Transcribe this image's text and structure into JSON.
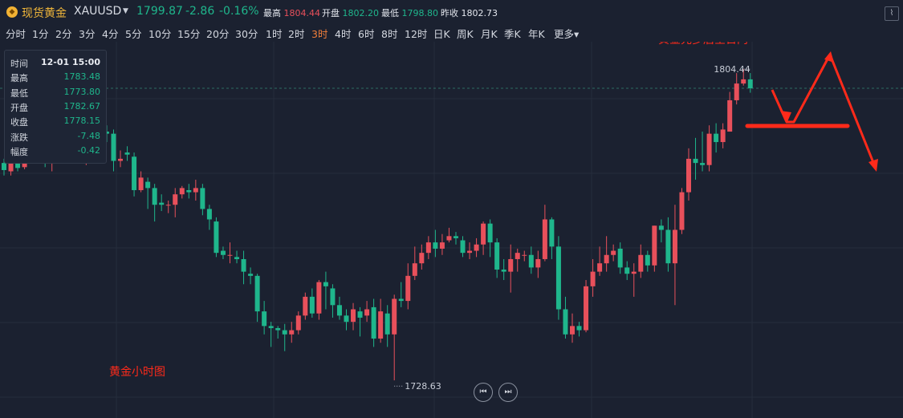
{
  "header": {
    "symbol_name": "现货黄金",
    "symbol_code": "XAUUSD",
    "last_price": "1799.87",
    "change": "-2.86",
    "change_pct": "-0.16%",
    "stats": [
      {
        "label": "最高",
        "value": "1804.44",
        "color": "red"
      },
      {
        "label": "开盘",
        "value": "1802.20",
        "color": "grn"
      },
      {
        "label": "最低",
        "value": "1798.80",
        "color": "grn"
      },
      {
        "label": "昨收",
        "value": "1802.73",
        "color": "plain"
      }
    ],
    "tool_icon": "indicator-icon"
  },
  "periods": [
    "分时",
    "1分",
    "2分",
    "3分",
    "4分",
    "5分",
    "10分",
    "15分",
    "20分",
    "30分",
    "1时",
    "2时",
    "3时",
    "4时",
    "6时",
    "8时",
    "12时",
    "日K",
    "周K",
    "月K",
    "季K",
    "年K",
    "更多▾"
  ],
  "active_period": "3时",
  "tooltip": {
    "rows": [
      {
        "k": "时间",
        "v": "12-01 15:00"
      },
      {
        "k": "最高",
        "v": "1783.48"
      },
      {
        "k": "最低",
        "v": "1773.80"
      },
      {
        "k": "开盘",
        "v": "1782.67"
      },
      {
        "k": "收盘",
        "v": "1778.15"
      },
      {
        "k": "涨跌",
        "v": "-7.48"
      },
      {
        "k": "幅度",
        "v": "-0.42"
      }
    ]
  },
  "annotations": {
    "top_right": "黄金先多后空日内",
    "bottom_left": "黄金小时图",
    "max_label": "1804.44",
    "min_label": "1728.63"
  },
  "nav": {
    "prev": "⏮",
    "next": "⏭"
  },
  "colors": {
    "up": "#e8505b",
    "down": "#1fb68c",
    "bg": "#1b2130",
    "grid": "#262d3c",
    "arrow": "#ff2a1a"
  },
  "chart_data": {
    "type": "candlestick",
    "ylim": [
      1721,
      1811
    ],
    "max_value": 1804.44,
    "min_value": 1728.63,
    "candles": [
      [
        1782.0,
        1780.3,
        1783.0,
        1779.0
      ],
      [
        1780.0,
        1782.5,
        1783.5,
        1779.0
      ],
      [
        1782.0,
        1780.8,
        1783.5,
        1780.0
      ],
      [
        1781.0,
        1783.0,
        1785.0,
        1780.5
      ],
      [
        1783.0,
        1786.5,
        1789.0,
        1782.0
      ],
      [
        1786.5,
        1786.0,
        1789.5,
        1784.5
      ],
      [
        1786.0,
        1783.0,
        1787.0,
        1781.0
      ],
      [
        1783.0,
        1787.5,
        1790.5,
        1780.0
      ],
      [
        1787.5,
        1788.0,
        1791.0,
        1785.5
      ],
      [
        1788.5,
        1789.0,
        1792.0,
        1786.0
      ],
      [
        1788.0,
        1787.0,
        1789.5,
        1783.5
      ],
      [
        1785.0,
        1783.0,
        1786.0,
        1782.0
      ],
      [
        1783.0,
        1784.0,
        1785.5,
        1781.5
      ],
      [
        1784.5,
        1793.0,
        1795.0,
        1784.5
      ],
      [
        1793.0,
        1790.0,
        1795.0,
        1788.5
      ],
      [
        1789.5,
        1789.0,
        1791.0,
        1787.0
      ],
      [
        1789.0,
        1782.5,
        1790.0,
        1780.0
      ],
      [
        1782.5,
        1783.0,
        1785.0,
        1781.0
      ],
      [
        1784.5,
        1784.0,
        1786.0,
        1782.5
      ],
      [
        1783.5,
        1775.5,
        1784.5,
        1774.0
      ],
      [
        1775.5,
        1778.5,
        1780.0,
        1775.0
      ],
      [
        1777.5,
        1776.0,
        1778.5,
        1771.0
      ],
      [
        1776.0,
        1772.0,
        1777.0,
        1768.0
      ],
      [
        1772.5,
        1772.0,
        1774.5,
        1770.5
      ],
      [
        1772.0,
        1772.0,
        1773.0,
        1770.0
      ],
      [
        1772.0,
        1774.5,
        1776.0,
        1769.0
      ],
      [
        1774.5,
        1776.0,
        1776.5,
        1773.5
      ],
      [
        1775.5,
        1775.0,
        1777.0,
        1773.5
      ],
      [
        1775.0,
        1776.0,
        1778.0,
        1773.0
      ],
      [
        1776.0,
        1771.0,
        1777.0,
        1769.5
      ],
      [
        1771.0,
        1768.5,
        1772.0,
        1766.0
      ],
      [
        1768.0,
        1760.5,
        1769.0,
        1759.5
      ],
      [
        1761.0,
        1760.0,
        1762.0,
        1759.0
      ],
      [
        1760.0,
        1760.0,
        1763.0,
        1758.0
      ],
      [
        1759.5,
        1759.0,
        1761.0,
        1758.0
      ],
      [
        1759.0,
        1756.0,
        1761.0,
        1753.0
      ],
      [
        1755.5,
        1755.0,
        1757.0,
        1753.0
      ],
      [
        1755.0,
        1746.5,
        1755.5,
        1744.0
      ],
      [
        1746.5,
        1743.0,
        1749.0,
        1741.0
      ],
      [
        1743.0,
        1742.5,
        1744.0,
        1738.0
      ],
      [
        1742.5,
        1742.0,
        1743.0,
        1740.0
      ],
      [
        1742.0,
        1741.0,
        1743.5,
        1737.0
      ],
      [
        1741.0,
        1742.0,
        1744.0,
        1739.0
      ],
      [
        1742.0,
        1745.5,
        1746.5,
        1741.0
      ],
      [
        1745.5,
        1750.0,
        1751.0,
        1744.5
      ],
      [
        1750.0,
        1746.0,
        1752.0,
        1745.0
      ],
      [
        1746.0,
        1753.5,
        1754.0,
        1744.5
      ],
      [
        1753.5,
        1752.5,
        1756.0,
        1747.0
      ],
      [
        1752.0,
        1748.0,
        1753.0,
        1745.0
      ],
      [
        1748.0,
        1745.5,
        1750.0,
        1744.5
      ],
      [
        1745.5,
        1744.0,
        1747.0,
        1742.0
      ],
      [
        1744.0,
        1747.0,
        1748.5,
        1742.0
      ],
      [
        1746.5,
        1745.0,
        1747.5,
        1740.5
      ],
      [
        1745.5,
        1747.0,
        1749.0,
        1744.0
      ],
      [
        1747.5,
        1740.0,
        1749.5,
        1738.0
      ],
      [
        1740.0,
        1746.5,
        1749.5,
        1739.0
      ],
      [
        1746.0,
        1741.0,
        1748.0,
        1738.0
      ],
      [
        1741.0,
        1749.5,
        1750.5,
        1730.0
      ],
      [
        1749.5,
        1749.0,
        1753.5,
        1747.5
      ],
      [
        1749.0,
        1755.0,
        1758.0,
        1747.0
      ],
      [
        1755.0,
        1758.0,
        1762.0,
        1754.0
      ],
      [
        1758.0,
        1760.5,
        1762.5,
        1756.5
      ],
      [
        1760.5,
        1763.0,
        1764.5,
        1759.0
      ],
      [
        1763.0,
        1761.5,
        1766.0,
        1759.5
      ],
      [
        1761.5,
        1763.0,
        1765.0,
        1760.0
      ],
      [
        1763.5,
        1764.5,
        1766.5,
        1763.0
      ],
      [
        1764.5,
        1764.0,
        1765.5,
        1762.5
      ],
      [
        1763.5,
        1760.5,
        1764.5,
        1759.5
      ],
      [
        1760.5,
        1761.0,
        1763.0,
        1759.0
      ],
      [
        1761.0,
        1762.5,
        1764.0,
        1759.5
      ],
      [
        1762.5,
        1767.5,
        1768.0,
        1760.0
      ],
      [
        1767.5,
        1763.0,
        1768.5,
        1759.5
      ],
      [
        1763.0,
        1756.5,
        1764.0,
        1754.5
      ],
      [
        1756.5,
        1756.0,
        1759.0,
        1754.0
      ],
      [
        1756.0,
        1759.0,
        1762.5,
        1751.0
      ],
      [
        1759.0,
        1760.5,
        1761.5,
        1756.0
      ],
      [
        1760.0,
        1760.0,
        1761.0,
        1758.5
      ],
      [
        1760.0,
        1757.0,
        1762.0,
        1755.5
      ],
      [
        1757.0,
        1759.0,
        1761.0,
        1754.5
      ],
      [
        1759.0,
        1768.5,
        1772.0,
        1758.5
      ],
      [
        1768.5,
        1762.0,
        1769.0,
        1759.0
      ],
      [
        1762.0,
        1747.0,
        1764.5,
        1744.5
      ],
      [
        1747.0,
        1741.0,
        1750.0,
        1740.0
      ],
      [
        1741.0,
        1743.0,
        1746.0,
        1739.0
      ],
      [
        1743.0,
        1742.0,
        1744.0,
        1740.5
      ],
      [
        1742.0,
        1752.5,
        1754.0,
        1741.5
      ],
      [
        1752.5,
        1756.0,
        1759.0,
        1750.0
      ],
      [
        1756.0,
        1758.0,
        1762.0,
        1755.0
      ],
      [
        1758.0,
        1760.0,
        1764.5,
        1756.0
      ],
      [
        1760.0,
        1761.0,
        1762.5,
        1758.5
      ],
      [
        1761.5,
        1757.0,
        1763.0,
        1755.5
      ],
      [
        1757.0,
        1755.5,
        1758.5,
        1754.0
      ],
      [
        1755.5,
        1756.0,
        1758.0,
        1750.0
      ],
      [
        1756.0,
        1760.0,
        1762.5,
        1754.5
      ],
      [
        1760.0,
        1757.5,
        1761.0,
        1756.0
      ],
      [
        1757.5,
        1767.0,
        1767.0,
        1756.0
      ],
      [
        1767.0,
        1766.0,
        1768.5,
        1763.0
      ],
      [
        1766.0,
        1758.0,
        1769.0,
        1756.0
      ],
      [
        1758.0,
        1766.0,
        1772.0,
        1748.0
      ],
      [
        1766.0,
        1775.0,
        1776.0,
        1765.0
      ],
      [
        1775.0,
        1783.0,
        1785.5,
        1773.0
      ],
      [
        1783.0,
        1782.0,
        1788.0,
        1778.0
      ],
      [
        1782.0,
        1781.5,
        1789.5,
        1780.0
      ],
      [
        1781.5,
        1789.0,
        1791.0,
        1780.0
      ],
      [
        1789.0,
        1787.0,
        1791.5,
        1784.5
      ],
      [
        1787.0,
        1790.0,
        1791.5,
        1785.5
      ],
      [
        1789.5,
        1797.0,
        1799.0,
        1789.5
      ],
      [
        1797.0,
        1801.0,
        1803.5,
        1796.0
      ],
      [
        1801.0,
        1802.0,
        1804.44,
        1800.5
      ],
      [
        1802.0,
        1799.87,
        1803.5,
        1798.8
      ]
    ]
  }
}
